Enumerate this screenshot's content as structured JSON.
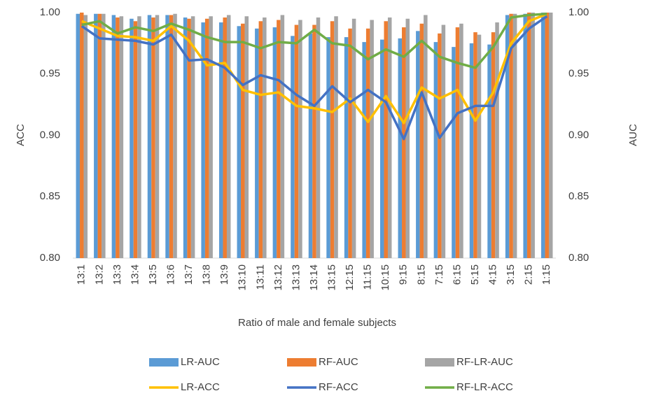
{
  "chart_data": {
    "type": "bar",
    "categories": [
      "13:1",
      "13:2",
      "13:3",
      "13:4",
      "13:5",
      "13:6",
      "13:7",
      "13:8",
      "13:9",
      "13:10",
      "13:11",
      "13:12",
      "13:13",
      "13:14",
      "13:15",
      "12:15",
      "11:15",
      "10:15",
      "9:15",
      "8:15",
      "7:15",
      "6:15",
      "5:15",
      "4:15",
      "3:15",
      "2:15",
      "1:15"
    ],
    "xlabel": "Ratio of male and female subjects",
    "ylabel": "ACC",
    "y2label": "AUC",
    "ylim": [
      0.8,
      1.0
    ],
    "yticks": [
      {
        "value": 0.8,
        "label": "0.80"
      },
      0.85,
      {
        "value": 0.9,
        "label": "0.90"
      },
      0.95,
      {
        "value": 1.0,
        "label": "1.00"
      }
    ],
    "y2lim": [
      0.8,
      1.0
    ],
    "y2ticks": [
      {
        "value": 0.8,
        "label": "0.80"
      },
      0.85,
      {
        "value": 0.9,
        "label": "0.90"
      },
      0.95,
      {
        "value": 1.0,
        "label": "1.00"
      }
    ],
    "legend": "bottom",
    "series": [
      {
        "name": "LR-AUC",
        "type": "bar",
        "axis": "y2",
        "color": "#5b9bd5",
        "values": [
          0.999,
          0.999,
          0.998,
          0.995,
          0.998,
          0.998,
          0.996,
          0.992,
          0.992,
          0.989,
          0.987,
          0.988,
          0.981,
          0.983,
          0.98,
          0.98,
          0.976,
          0.978,
          0.979,
          0.985,
          0.976,
          0.972,
          0.975,
          0.974,
          0.998,
          0.999,
          1.0
        ]
      },
      {
        "name": "RF-AUC",
        "type": "bar",
        "axis": "y2",
        "color": "#ed7d31",
        "values": [
          1.0,
          0.999,
          0.996,
          0.993,
          0.996,
          0.998,
          0.995,
          0.995,
          0.996,
          0.991,
          0.993,
          0.994,
          0.99,
          0.99,
          0.993,
          0.987,
          0.987,
          0.993,
          0.988,
          0.991,
          0.983,
          0.988,
          0.984,
          0.984,
          0.999,
          1.0,
          1.0
        ]
      },
      {
        "name": "RF-LR-AUC",
        "type": "bar",
        "axis": "y2",
        "color": "#a5a5a5",
        "values": [
          0.998,
          0.999,
          0.997,
          0.997,
          0.998,
          0.999,
          0.997,
          0.997,
          0.998,
          0.997,
          0.996,
          0.998,
          0.994,
          0.996,
          0.997,
          0.995,
          0.994,
          0.996,
          0.995,
          0.998,
          0.99,
          0.991,
          0.982,
          0.992,
          0.999,
          1.0,
          1.0
        ]
      },
      {
        "name": "LR-ACC",
        "type": "line",
        "color": "#ffc000",
        "values": [
          0.993,
          0.987,
          0.981,
          0.98,
          0.977,
          0.989,
          0.977,
          0.957,
          0.959,
          0.937,
          0.933,
          0.935,
          0.924,
          0.922,
          0.919,
          0.93,
          0.911,
          0.932,
          0.91,
          0.939,
          0.93,
          0.937,
          0.912,
          0.935,
          0.975,
          0.993,
          0.999
        ]
      },
      {
        "name": "RF-ACC",
        "type": "line",
        "color": "#4472c4",
        "values": [
          0.989,
          0.979,
          0.978,
          0.977,
          0.974,
          0.982,
          0.961,
          0.962,
          0.955,
          0.941,
          0.949,
          0.945,
          0.933,
          0.924,
          0.94,
          0.927,
          0.937,
          0.927,
          0.897,
          0.935,
          0.898,
          0.918,
          0.924,
          0.924,
          0.971,
          0.987,
          0.997
        ]
      },
      {
        "name": "RF-LR-ACC",
        "type": "line",
        "color": "#70ad47",
        "values": [
          0.99,
          0.993,
          0.983,
          0.988,
          0.985,
          0.991,
          0.986,
          0.98,
          0.976,
          0.976,
          0.971,
          0.976,
          0.975,
          0.986,
          0.975,
          0.973,
          0.962,
          0.97,
          0.964,
          0.977,
          0.964,
          0.959,
          0.955,
          0.972,
          0.996,
          0.998,
          0.999
        ]
      }
    ]
  }
}
